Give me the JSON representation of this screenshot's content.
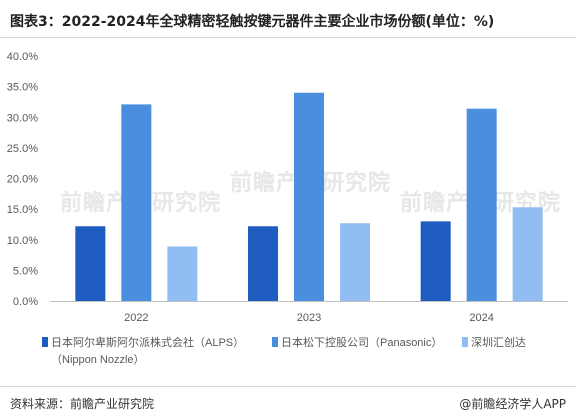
{
  "title": "图表3：2022-2024年全球精密轻触按键元器件主要企业市场份额(单位：%)",
  "source": "资料来源：前瞻产业研究院",
  "brand": "@前瞻经济学人APP",
  "watermark": "前瞻产业研究院",
  "colors": {
    "alps": "#1f5cc0",
    "panasonic": "#4a8ee0",
    "shenzhen": "#92bdf2",
    "axis": "#bfbfbf",
    "text": "#595959"
  },
  "chart_data": {
    "type": "bar",
    "categories": [
      "2022",
      "2023",
      "2024"
    ],
    "series": [
      {
        "name": "日本阿尔卑斯阿尔派株式会社（ALPS）",
        "values": [
          12.2,
          12.2,
          13.0
        ]
      },
      {
        "name": "日本松下控股公司（Panasonic）",
        "values": [
          32.1,
          34.0,
          31.4
        ]
      },
      {
        "name": "深圳汇创达",
        "values": [
          8.9,
          12.7,
          15.3
        ]
      }
    ],
    "legend_lines": [
      [
        "日本阿尔卑斯阿尔派株式会社（ALPS）",
        "（Nippon Nozzle）"
      ],
      [
        "日本松下控股公司（Panasonic）"
      ],
      [
        "深圳汇创达"
      ]
    ],
    "y_ticks": [
      "0.0%",
      "5.0%",
      "10.0%",
      "15.0%",
      "20.0%",
      "25.0%",
      "30.0%",
      "35.0%",
      "40.0%"
    ],
    "ylim": [
      0,
      40
    ],
    "legend_position": "bottom",
    "grid": false
  }
}
